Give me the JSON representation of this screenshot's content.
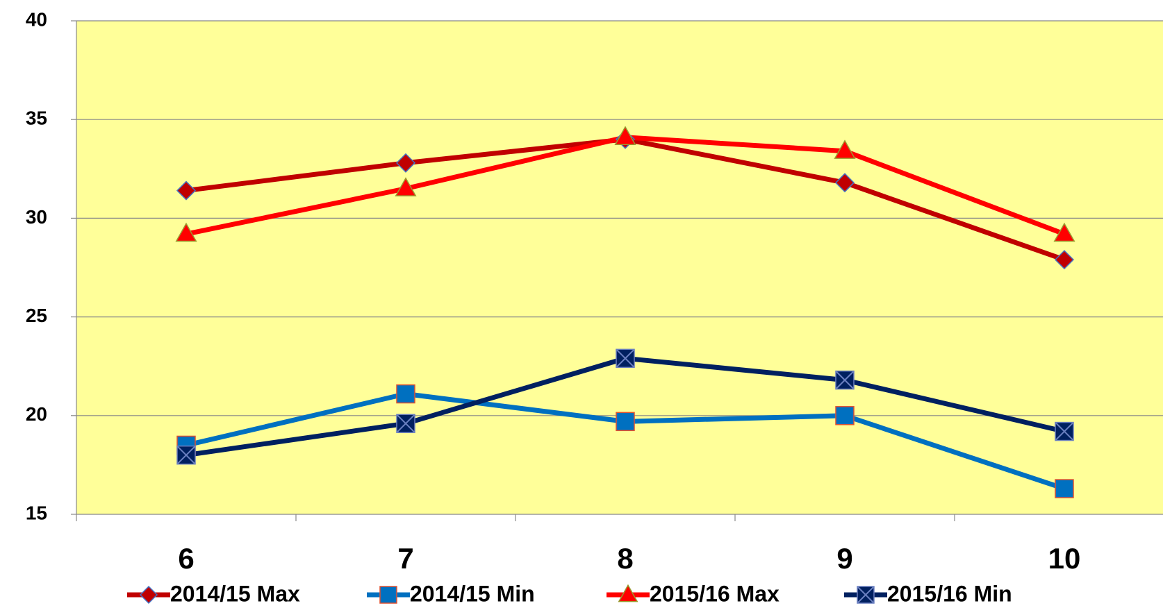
{
  "chart_data": {
    "type": "line",
    "categories": [
      "6",
      "7",
      "8",
      "9",
      "10"
    ],
    "series": [
      {
        "name": "2014/15 Max",
        "color": "#c00000",
        "marker": "diamond",
        "values": [
          31.4,
          32.8,
          34.0,
          31.8,
          27.9
        ]
      },
      {
        "name": "2014/15 Min",
        "color": "#0070c0",
        "marker": "square",
        "values": [
          18.5,
          21.1,
          19.7,
          20.0,
          16.3
        ]
      },
      {
        "name": "2015/16 Max",
        "color": "#ff0000",
        "marker": "triangle",
        "values": [
          29.2,
          31.5,
          34.1,
          33.4,
          29.2
        ]
      },
      {
        "name": "2015/16 Min",
        "color": "#002060",
        "marker": "x-square",
        "values": [
          18.0,
          19.6,
          22.9,
          21.8,
          19.2
        ]
      }
    ],
    "ylim": [
      15,
      40
    ],
    "yticks": [
      15,
      20,
      25,
      30,
      35,
      40
    ],
    "grid": true,
    "legend": "bottom",
    "background": "#ffff99"
  }
}
